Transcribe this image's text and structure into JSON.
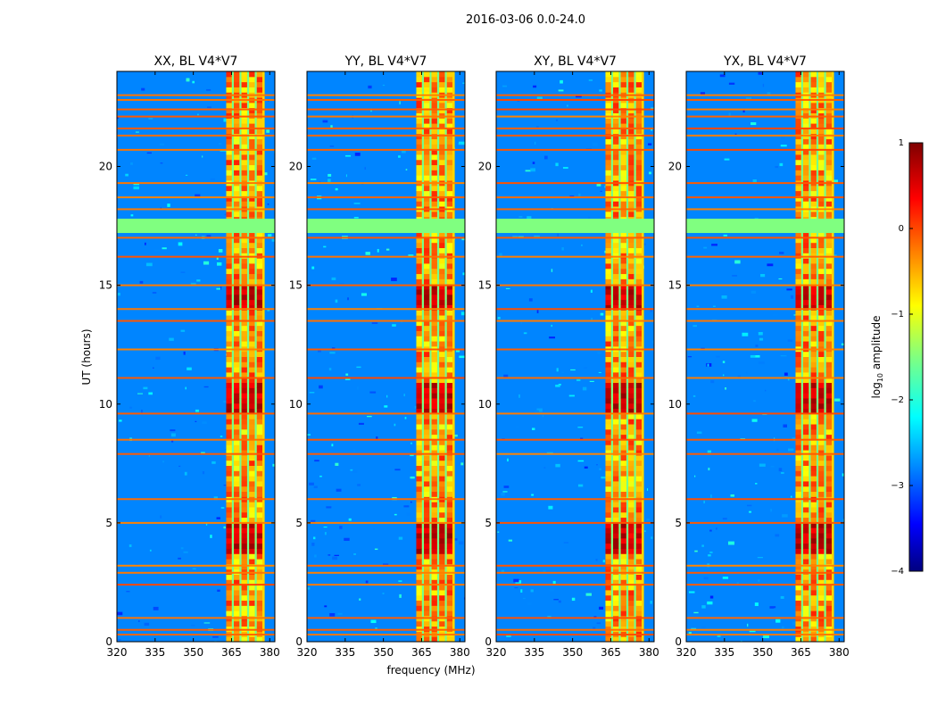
{
  "chart_data": {
    "type": "heatmap",
    "title": "2016-03-06 0.0-24.0",
    "xlabel": "frequency (MHz)",
    "ylabel": "UT (hours)",
    "xlim": [
      320,
      382
    ],
    "ylim": [
      0,
      24
    ],
    "x_ticks": [
      320,
      335,
      350,
      365,
      380
    ],
    "y_ticks": [
      0,
      5,
      10,
      15,
      20
    ],
    "panels": [
      {
        "title": "XX, BL V4*V7"
      },
      {
        "title": "YY, BL V4*V7"
      },
      {
        "title": "XY, BL V4*V7"
      },
      {
        "title": "YX, BL V4*V7"
      }
    ],
    "band_mhz": [
      363,
      378
    ],
    "band_columns_mhz": [
      364,
      367,
      370,
      373,
      376
    ],
    "strong_time_ranges_hours": [
      [
        3.7,
        5.1
      ],
      [
        9.6,
        10.9
      ],
      [
        14.0,
        15.0
      ]
    ],
    "flagged_time_range_hours": [
      17.2,
      17.8
    ],
    "rfi_lines_hours": [
      0.3,
      0.5,
      1.0,
      2.4,
      2.9,
      3.2,
      5.0,
      6.0,
      7.9,
      8.5,
      9.6,
      11.1,
      12.3,
      13.5,
      14.0,
      15.0,
      16.2,
      17.0,
      18.2,
      18.7,
      19.3,
      20.7,
      21.3,
      21.6,
      22.1,
      22.4,
      22.8,
      23.0
    ],
    "colorbar": {
      "label_prefix": "log",
      "label_sub": "10",
      "label_suffix": " amplitude",
      "range": [
        -4,
        1
      ],
      "ticks": [
        1,
        0,
        -1,
        -2,
        -3,
        -4
      ],
      "tick_labels": [
        "1",
        "0",
        "−1",
        "−2",
        "−3",
        "−4"
      ]
    }
  }
}
